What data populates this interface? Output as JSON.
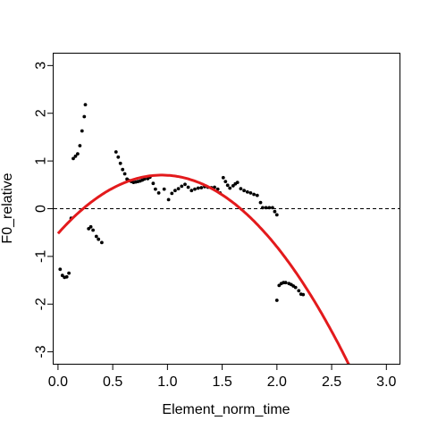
{
  "chart_data": {
    "type": "scatter",
    "xlabel": "Element_norm_time",
    "ylabel": "F0_relative",
    "xlim": [
      -0.04,
      3.12
    ],
    "ylim": [
      -3.25,
      3.25
    ],
    "x_ticks": [
      0.0,
      0.5,
      1.0,
      1.5,
      2.0,
      2.5,
      3.0
    ],
    "x_tick_labels": [
      "0.0",
      "0.5",
      "1.0",
      "1.5",
      "2.0",
      "2.5",
      "3.0"
    ],
    "y_ticks": [
      -3,
      -2,
      -1,
      0,
      1,
      2,
      3
    ],
    "y_tick_labels": [
      "-3",
      "-2",
      "-1",
      "0",
      "1",
      "2",
      "3"
    ],
    "reference_line": {
      "y": 0,
      "style": "dashed",
      "color": "#000000"
    },
    "point_color": "#000000",
    "points": [
      [
        0.02,
        -1.27
      ],
      [
        0.04,
        -1.4
      ],
      [
        0.06,
        -1.44
      ],
      [
        0.08,
        -1.43
      ],
      [
        0.1,
        -1.35
      ],
      [
        0.12,
        -0.2
      ],
      [
        0.14,
        1.05
      ],
      [
        0.16,
        1.1
      ],
      [
        0.18,
        1.15
      ],
      [
        0.2,
        1.32
      ],
      [
        0.22,
        1.63
      ],
      [
        0.24,
        1.93
      ],
      [
        0.25,
        2.18
      ],
      [
        0.28,
        -0.42
      ],
      [
        0.3,
        -0.38
      ],
      [
        0.32,
        -0.45
      ],
      [
        0.35,
        -0.58
      ],
      [
        0.37,
        -0.64
      ],
      [
        0.4,
        -0.71
      ],
      [
        0.53,
        1.19
      ],
      [
        0.55,
        1.08
      ],
      [
        0.57,
        0.95
      ],
      [
        0.59,
        0.82
      ],
      [
        0.61,
        0.73
      ],
      [
        0.63,
        0.62
      ],
      [
        0.65,
        0.59
      ],
      [
        0.67,
        0.57
      ],
      [
        0.69,
        0.55
      ],
      [
        0.71,
        0.56
      ],
      [
        0.73,
        0.57
      ],
      [
        0.75,
        0.58
      ],
      [
        0.77,
        0.6
      ],
      [
        0.79,
        0.62
      ],
      [
        0.82,
        0.63
      ],
      [
        0.84,
        0.66
      ],
      [
        0.87,
        0.53
      ],
      [
        0.89,
        0.41
      ],
      [
        0.92,
        0.33
      ],
      [
        0.97,
        0.41
      ],
      [
        1.01,
        0.19
      ],
      [
        1.04,
        0.32
      ],
      [
        1.07,
        0.38
      ],
      [
        1.1,
        0.42
      ],
      [
        1.13,
        0.47
      ],
      [
        1.16,
        0.51
      ],
      [
        1.19,
        0.45
      ],
      [
        1.22,
        0.38
      ],
      [
        1.25,
        0.41
      ],
      [
        1.28,
        0.43
      ],
      [
        1.31,
        0.44
      ],
      [
        1.34,
        0.46
      ],
      [
        1.37,
        0.45
      ],
      [
        1.4,
        0.44
      ],
      [
        1.43,
        0.45
      ],
      [
        1.46,
        0.41
      ],
      [
        1.48,
        0.33
      ],
      [
        1.51,
        0.65
      ],
      [
        1.53,
        0.57
      ],
      [
        1.55,
        0.49
      ],
      [
        1.57,
        0.43
      ],
      [
        1.6,
        0.48
      ],
      [
        1.62,
        0.52
      ],
      [
        1.64,
        0.55
      ],
      [
        1.67,
        0.42
      ],
      [
        1.7,
        0.38
      ],
      [
        1.73,
        0.35
      ],
      [
        1.76,
        0.33
      ],
      [
        1.79,
        0.3
      ],
      [
        1.82,
        0.28
      ],
      [
        1.85,
        0.13
      ],
      [
        1.87,
        0.02
      ],
      [
        1.9,
        0.02
      ],
      [
        1.93,
        0.02
      ],
      [
        1.96,
        0.02
      ],
      [
        1.98,
        -0.06
      ],
      [
        2.0,
        -0.13
      ],
      [
        2.0,
        -1.92
      ],
      [
        2.02,
        -1.61
      ],
      [
        2.04,
        -1.57
      ],
      [
        2.06,
        -1.55
      ],
      [
        2.08,
        -1.55
      ],
      [
        2.11,
        -1.57
      ],
      [
        2.13,
        -1.59
      ],
      [
        2.15,
        -1.62
      ],
      [
        2.17,
        -1.65
      ],
      [
        2.2,
        -1.72
      ],
      [
        2.22,
        -1.79
      ],
      [
        2.24,
        -1.8
      ]
    ],
    "fit_curve": {
      "type": "quadratic",
      "color": "#e31a1c",
      "coefficients": {
        "a": -1.36,
        "b": 2.58,
        "c": -0.52
      },
      "x_range": [
        0.0,
        2.68
      ]
    }
  }
}
